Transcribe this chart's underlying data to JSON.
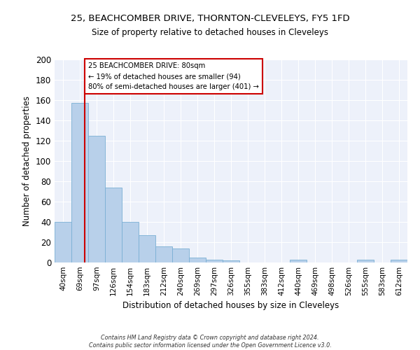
{
  "title": "25, BEACHCOMBER DRIVE, THORNTON-CLEVELEYS, FY5 1FD",
  "subtitle": "Size of property relative to detached houses in Cleveleys",
  "xlabel": "Distribution of detached houses by size in Cleveleys",
  "ylabel": "Number of detached properties",
  "bar_labels": [
    "40sqm",
    "69sqm",
    "97sqm",
    "126sqm",
    "154sqm",
    "183sqm",
    "212sqm",
    "240sqm",
    "269sqm",
    "297sqm",
    "326sqm",
    "355sqm",
    "383sqm",
    "412sqm",
    "440sqm",
    "469sqm",
    "498sqm",
    "526sqm",
    "555sqm",
    "583sqm",
    "612sqm"
  ],
  "bar_values": [
    40,
    157,
    125,
    74,
    40,
    27,
    16,
    14,
    5,
    3,
    2,
    0,
    0,
    0,
    3,
    0,
    0,
    0,
    3,
    0,
    3
  ],
  "bar_color": "#b8d0ea",
  "bar_edge_color": "#7aafd4",
  "vline_x": 1.3,
  "vline_color": "#cc0000",
  "annotation_title": "25 BEACHCOMBER DRIVE: 80sqm",
  "annotation_line1": "← 19% of detached houses are smaller (94)",
  "annotation_line2": "80% of semi-detached houses are larger (401) →",
  "annotation_box_facecolor": "#ffffff",
  "annotation_box_edgecolor": "#cc0000",
  "ylim": [
    0,
    200
  ],
  "yticks": [
    0,
    20,
    40,
    60,
    80,
    100,
    120,
    140,
    160,
    180,
    200
  ],
  "bg_color": "#edf1fa",
  "grid_color": "#ffffff",
  "footer1": "Contains HM Land Registry data © Crown copyright and database right 2024.",
  "footer2": "Contains public sector information licensed under the Open Government Licence v3.0."
}
